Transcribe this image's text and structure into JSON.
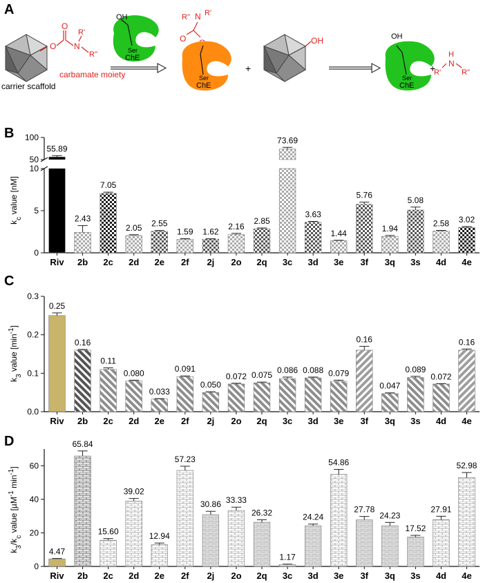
{
  "panel_a": {
    "label": "A",
    "scaffold_label": "carrier scaffold",
    "moiety_label": "carbamate moiety",
    "enzyme_short": "ChE",
    "serine": "Ser",
    "hydroxyl": "OH",
    "oxygen": "O",
    "nitrogen": "N",
    "hydrogen": "H",
    "r1": "R'",
    "r2": "R''",
    "plus": "+",
    "colors": {
      "enzyme_free": "#22c31e",
      "enzyme_carbamylated": "#ff8a10",
      "moiety": "#e0201b"
    }
  },
  "chart_data": [
    {
      "panel": "B",
      "type": "bar",
      "title": "",
      "ylabel_main": "k",
      "ylabel_sub": "c",
      "ylabel_rest": " value [nM]",
      "categories": [
        "Riv",
        "2b",
        "2c",
        "2d",
        "2e",
        "2f",
        "2j",
        "2o",
        "2q",
        "3c",
        "3d",
        "3e",
        "3f",
        "3q",
        "3s",
        "4d",
        "4e"
      ],
      "values": [
        55.89,
        2.43,
        7.05,
        2.05,
        2.55,
        1.59,
        1.62,
        2.16,
        2.85,
        73.69,
        3.63,
        1.44,
        5.76,
        1.94,
        5.08,
        2.58,
        3.02
      ],
      "labels": [
        "55.89",
        "2.43",
        "7.05",
        "2.05",
        "2.55",
        "1.59",
        "1.62",
        "2.16",
        "2.85",
        "73.69",
        "3.63",
        "1.44",
        "5.76",
        "1.94",
        "5.08",
        "2.58",
        "3.02"
      ],
      "errors": [
        3,
        0.8,
        0.15,
        0.1,
        0.1,
        0.1,
        0.05,
        0.15,
        0.1,
        4,
        0.1,
        0.05,
        0.25,
        0.12,
        0.35,
        0.08,
        0.1
      ],
      "axis_break": {
        "lower": [
          0,
          10
        ],
        "upper": [
          50,
          100
        ]
      },
      "yticks_lower": [
        "0",
        "5",
        "10"
      ],
      "yticks_upper": [
        "50",
        "100"
      ],
      "legend": "none"
    },
    {
      "panel": "C",
      "type": "bar",
      "ylabel_main": "k",
      "ylabel_sub": "3",
      "ylabel_rest": " value [min",
      "ylabel_sup": "-1",
      "ylabel_end": "]",
      "categories": [
        "Riv",
        "2b",
        "2c",
        "2d",
        "2e",
        "2f",
        "2j",
        "2o",
        "2q",
        "3c",
        "3d",
        "3e",
        "3f",
        "3q",
        "3s",
        "4d",
        "4e"
      ],
      "values": [
        0.25,
        0.16,
        0.11,
        0.08,
        0.033,
        0.091,
        0.05,
        0.072,
        0.075,
        0.086,
        0.088,
        0.079,
        0.16,
        0.047,
        0.089,
        0.072,
        0.16
      ],
      "labels": [
        "0.25",
        "0.16",
        "0.11",
        "0.080",
        "0.033",
        "0.091",
        "0.050",
        "0.072",
        "0.075",
        "0.086",
        "0.088",
        "0.079",
        "0.16",
        "0.047",
        "0.089",
        "0.072",
        "0.16"
      ],
      "errors": [
        0.007,
        0.002,
        0.004,
        0.002,
        0.001,
        0.002,
        0.002,
        0.002,
        0.002,
        0.004,
        0.002,
        0.003,
        0.01,
        0.002,
        0.003,
        0.001,
        0.003
      ],
      "ylim": [
        0,
        0.3
      ],
      "yticks": [
        "0.0",
        "0.1",
        "0.2",
        "0.3"
      ],
      "legend": "none"
    },
    {
      "panel": "D",
      "type": "bar",
      "ylabel_main": "k",
      "ylabel_sub": "3",
      "ylabel_rest": "/k",
      "ylabel_sub2": "c",
      "ylabel_rest2": " value [µM",
      "ylabel_sup": "-1",
      "ylabel_rest3": " min",
      "ylabel_sup2": "-1",
      "ylabel_end": "]",
      "categories": [
        "Riv",
        "2b",
        "2c",
        "2d",
        "2e",
        "2f",
        "2j",
        "2o",
        "2q",
        "3c",
        "3d",
        "3e",
        "3f",
        "3q",
        "3s",
        "4d",
        "4e"
      ],
      "values": [
        4.47,
        65.84,
        15.6,
        39.02,
        12.94,
        57.23,
        30.86,
        33.33,
        26.32,
        1.17,
        24.24,
        54.86,
        27.78,
        24.23,
        17.52,
        27.91,
        52.98
      ],
      "labels": [
        "4.47",
        "65.84",
        "15.60",
        "39.02",
        "12.94",
        "57.23",
        "30.86",
        "33.33",
        "26.32",
        "1.17",
        "24.24",
        "54.86",
        "27.78",
        "24.23",
        "17.52",
        "27.91",
        "52.98"
      ],
      "errors": [
        0.3,
        3,
        1,
        1.5,
        1,
        2.5,
        2,
        2,
        1.5,
        0.2,
        1,
        3,
        2,
        2,
        1,
        2,
        3
      ],
      "ylim": [
        0,
        70
      ],
      "yticks": [
        "0",
        "20",
        "40",
        "60"
      ],
      "legend": "none"
    }
  ]
}
